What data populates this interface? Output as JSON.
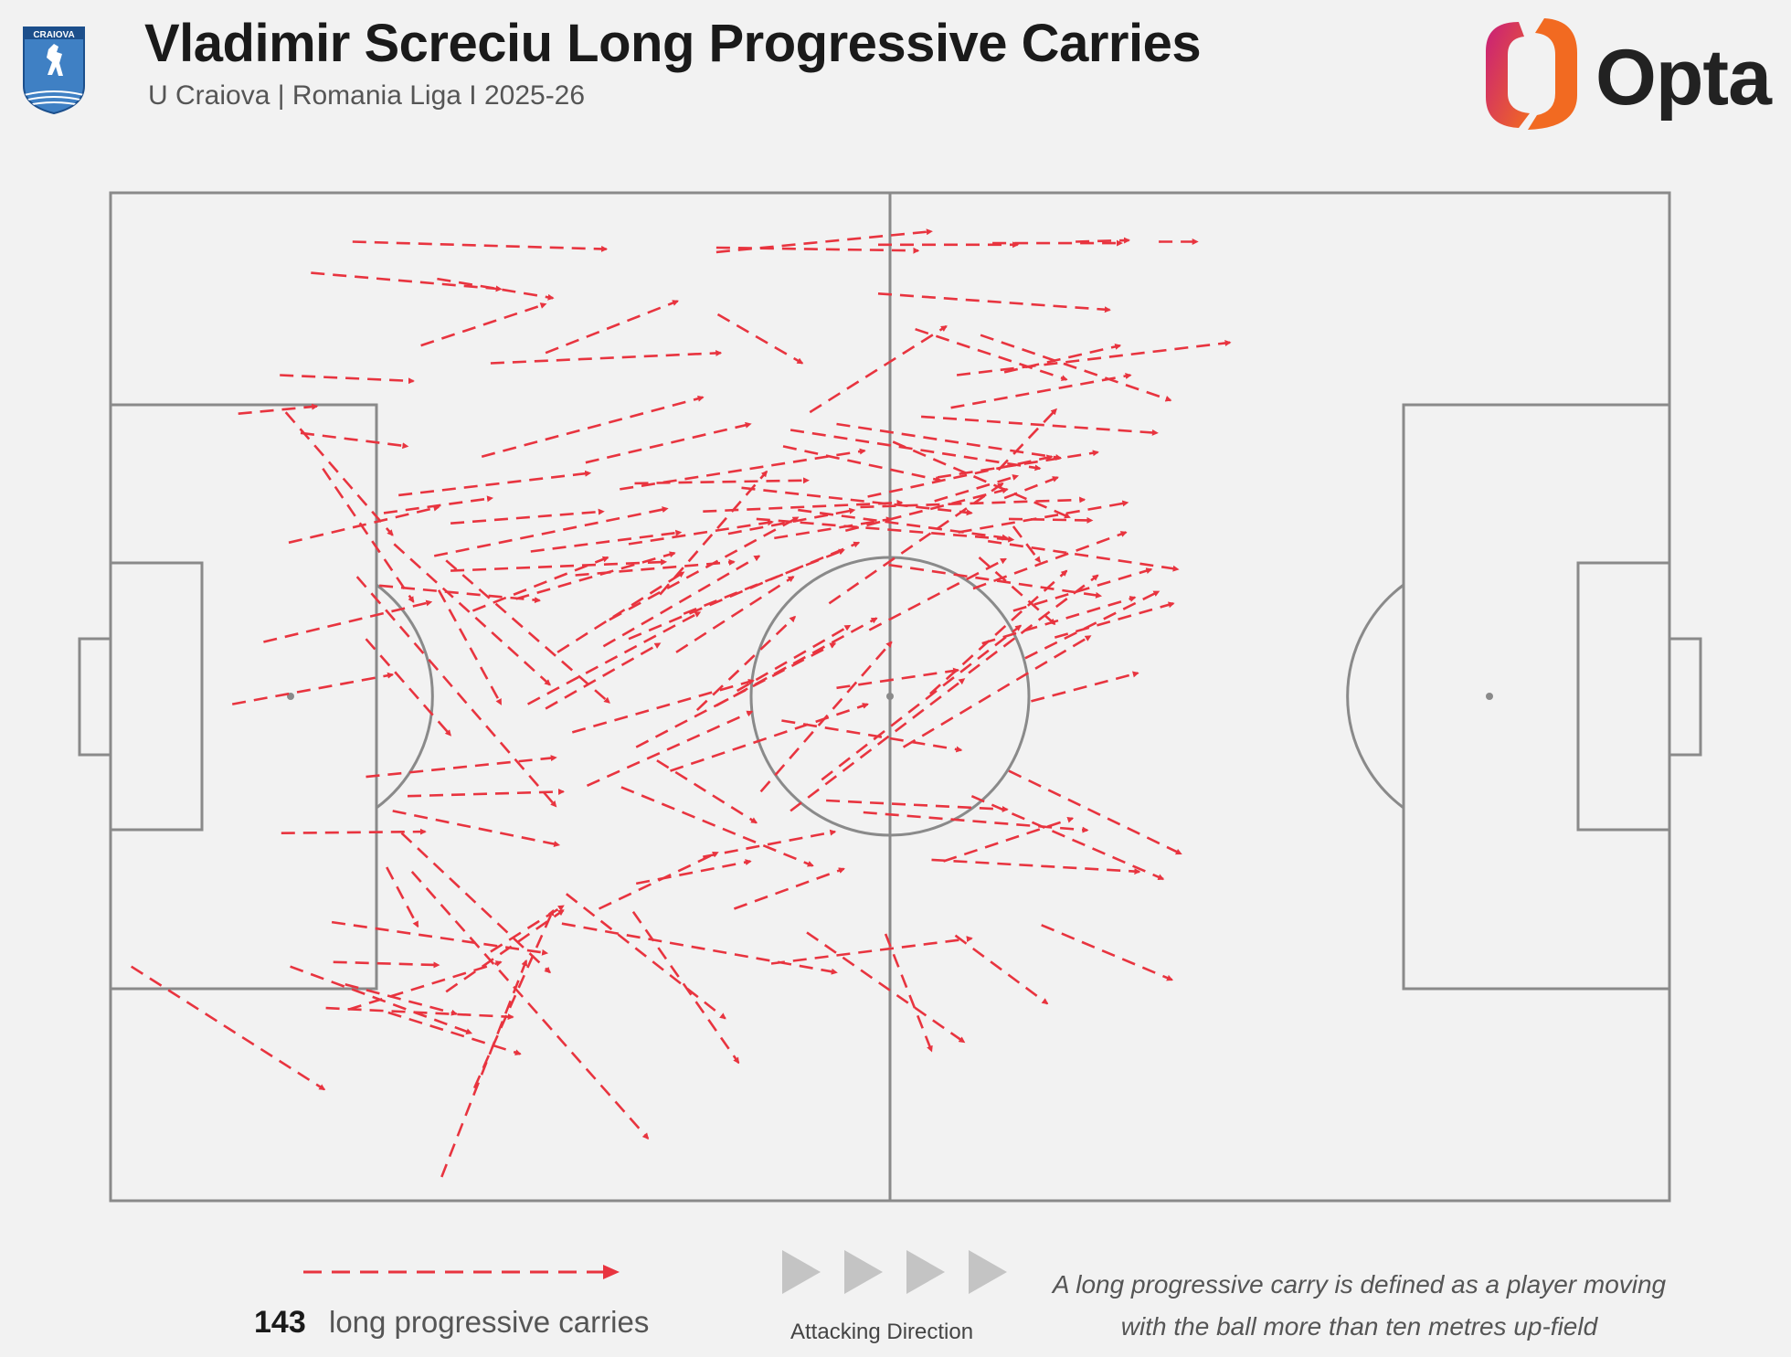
{
  "header": {
    "title": "Vladimir Screciu Long Progressive Carries",
    "subtitle": "U Craiova | Romania Liga I 2025-26",
    "crest_text": "CRAIOVA",
    "brand": "Opta"
  },
  "colors": {
    "background": "#f2f2f2",
    "pitch_lines": "#8a8a8a",
    "carry": "#e8343f",
    "brand_gradient": [
      "#c81e7a",
      "#f26a21"
    ]
  },
  "legend": {
    "count": "143",
    "label": "long progressive carries",
    "direction_label": "Attacking Direction",
    "definition": "A long progressive carry is defined as a player moving with the ball more than ten metres up-field"
  },
  "chart_data": {
    "type": "arrow-map",
    "pitch_length_m": 105,
    "pitch_width_m": 68,
    "total_carries": 143,
    "attacking_direction": "left-to-right",
    "carries": [
      [
        16.3,
        3.3,
        33.4,
        3.8
      ],
      [
        13.5,
        5.4,
        26.3,
        6.5
      ],
      [
        20.9,
        10.3,
        29.3,
        7.5
      ],
      [
        22.0,
        5.8,
        29.8,
        7.1
      ],
      [
        11.4,
        12.3,
        20.4,
        12.7
      ],
      [
        8.6,
        14.9,
        13.9,
        14.4
      ],
      [
        12.8,
        16.2,
        20.0,
        17.1
      ],
      [
        29.3,
        10.8,
        38.2,
        7.3
      ],
      [
        40.8,
        4.0,
        55.3,
        2.6
      ],
      [
        40.8,
        3.7,
        54.4,
        3.9
      ],
      [
        51.7,
        3.5,
        61.1,
        3.5
      ],
      [
        59.4,
        3.4,
        68.1,
        3.4
      ],
      [
        65.0,
        3.3,
        68.6,
        3.2
      ],
      [
        70.6,
        3.3,
        73.2,
        3.3
      ],
      [
        51.7,
        6.8,
        67.3,
        7.9
      ],
      [
        54.2,
        9.2,
        64.4,
        12.6
      ],
      [
        58.6,
        9.6,
        71.4,
        14.0
      ],
      [
        60.2,
        12.1,
        68.0,
        10.3
      ],
      [
        57.0,
        12.3,
        75.4,
        10.1
      ],
      [
        48.9,
        15.6,
        64.0,
        17.9
      ],
      [
        45.8,
        16.0,
        62.6,
        18.6
      ],
      [
        59.8,
        18.7,
        63.7,
        14.6
      ],
      [
        54.6,
        15.1,
        70.5,
        16.2
      ],
      [
        52.7,
        16.8,
        64.6,
        21.9
      ],
      [
        56.6,
        14.5,
        68.7,
        12.3
      ],
      [
        25.0,
        17.8,
        39.9,
        13.8
      ],
      [
        32.0,
        18.2,
        43.1,
        15.6
      ],
      [
        21.8,
        24.5,
        37.5,
        21.3
      ],
      [
        19.4,
        20.4,
        32.3,
        18.9
      ],
      [
        18.4,
        21.6,
        25.7,
        20.6
      ],
      [
        12.0,
        23.6,
        22.1,
        21.2
      ],
      [
        10.3,
        30.3,
        21.6,
        27.6
      ],
      [
        8.2,
        34.5,
        19.0,
        32.5
      ],
      [
        11.8,
        14.8,
        19.0,
        23.1
      ],
      [
        14.3,
        18.6,
        20.4,
        27.6
      ],
      [
        22.1,
        26.8,
        26.3,
        34.5
      ],
      [
        19.1,
        23.7,
        29.6,
        33.2
      ],
      [
        17.2,
        30.1,
        22.9,
        36.6
      ],
      [
        16.6,
        25.9,
        30.0,
        41.4
      ],
      [
        22.6,
        24.8,
        33.6,
        34.4
      ],
      [
        17.2,
        39.4,
        30.0,
        38.1
      ],
      [
        20.0,
        40.7,
        30.5,
        40.4
      ],
      [
        19.6,
        43.2,
        29.6,
        52.6
      ],
      [
        18.6,
        45.5,
        20.7,
        49.5
      ],
      [
        14.9,
        49.2,
        29.4,
        51.3
      ],
      [
        15.0,
        51.9,
        22.1,
        52.1
      ],
      [
        12.1,
        52.2,
        24.3,
        56.7
      ],
      [
        1.4,
        52.2,
        14.4,
        60.5
      ],
      [
        14.5,
        55.0,
        27.1,
        55.6
      ],
      [
        16.0,
        55.1,
        26.3,
        51.9
      ],
      [
        18.7,
        55.3,
        27.6,
        58.1
      ],
      [
        15.8,
        53.4,
        23.3,
        55.4
      ],
      [
        25.6,
        51.2,
        30.5,
        48.1
      ],
      [
        22.6,
        53.9,
        30.5,
        48.4
      ],
      [
        20.3,
        45.8,
        36.2,
        63.8
      ],
      [
        24.5,
        60.4,
        29.8,
        48.4
      ],
      [
        22.3,
        66.4,
        28.0,
        51.8
      ],
      [
        30.7,
        47.3,
        41.4,
        55.7
      ],
      [
        35.2,
        48.5,
        42.3,
        58.7
      ],
      [
        30.4,
        49.3,
        48.9,
        52.6
      ],
      [
        32.9,
        48.3,
        40.9,
        44.5
      ],
      [
        35.4,
        46.6,
        43.1,
        45.1
      ],
      [
        42.0,
        48.3,
        49.4,
        45.6
      ],
      [
        39.9,
        44.8,
        48.8,
        43.1
      ],
      [
        44.5,
        52.0,
        58.0,
        50.3
      ],
      [
        46.9,
        49.9,
        57.5,
        57.3
      ],
      [
        52.2,
        50.0,
        55.3,
        57.9
      ],
      [
        56.9,
        50.1,
        63.1,
        54.7
      ],
      [
        62.7,
        49.4,
        71.5,
        53.1
      ],
      [
        58.0,
        40.7,
        70.9,
        46.3
      ],
      [
        55.3,
        45.0,
        69.3,
        45.8
      ],
      [
        50.7,
        41.8,
        65.8,
        43.0
      ],
      [
        48.2,
        41.0,
        60.4,
        41.6
      ],
      [
        34.4,
        40.1,
        47.3,
        45.4
      ],
      [
        36.8,
        38.3,
        43.5,
        42.5
      ],
      [
        32.1,
        40.0,
        43.2,
        35.0
      ],
      [
        35.4,
        37.4,
        48.8,
        30.4
      ],
      [
        37.7,
        39.0,
        51.0,
        34.5
      ],
      [
        40.8,
        34.6,
        51.6,
        28.7
      ],
      [
        43.8,
        40.4,
        52.6,
        30.3
      ],
      [
        45.8,
        41.7,
        57.5,
        32.8
      ],
      [
        47.9,
        39.6,
        61.3,
        29.2
      ],
      [
        53.4,
        37.4,
        66.0,
        29.9
      ],
      [
        55.2,
        33.8,
        64.4,
        25.5
      ],
      [
        57.8,
        32.4,
        66.5,
        25.8
      ],
      [
        51.1,
        29.5,
        60.3,
        24.7
      ],
      [
        48.9,
        33.4,
        57.1,
        32.2
      ],
      [
        42.2,
        33.6,
        49.8,
        29.2
      ],
      [
        38.1,
        31.0,
        46.0,
        25.9
      ],
      [
        38.6,
        28.4,
        49.4,
        24.1
      ],
      [
        39.5,
        34.9,
        46.1,
        28.6
      ],
      [
        29.3,
        34.8,
        37.0,
        30.4
      ],
      [
        31.1,
        36.4,
        43.3,
        32.9
      ],
      [
        28.1,
        34.5,
        39.7,
        28.3
      ],
      [
        34.9,
        30.1,
        50.4,
        23.6
      ],
      [
        33.2,
        30.6,
        43.7,
        24.5
      ],
      [
        33.6,
        28.8,
        46.3,
        21.9
      ],
      [
        30.1,
        31.0,
        38.6,
        25.6
      ],
      [
        27.3,
        27.4,
        38.0,
        24.3
      ],
      [
        24.4,
        28.2,
        33.5,
        24.6
      ],
      [
        22.9,
        25.5,
        37.4,
        24.9
      ],
      [
        22.9,
        22.3,
        33.2,
        21.5
      ],
      [
        28.3,
        24.2,
        38.4,
        22.9
      ],
      [
        31.3,
        25.8,
        42.0,
        24.9
      ],
      [
        34.9,
        23.7,
        44.6,
        22.2
      ],
      [
        37.0,
        27.1,
        44.2,
        18.8
      ],
      [
        34.3,
        20.0,
        50.8,
        17.4
      ],
      [
        39.9,
        21.5,
        53.3,
        20.9
      ],
      [
        35.3,
        19.6,
        47.0,
        19.4
      ],
      [
        41.6,
        23.0,
        50.1,
        21.4
      ],
      [
        44.7,
        23.3,
        52.6,
        22.0
      ],
      [
        49.5,
        22.8,
        60.4,
        20.0
      ],
      [
        42.5,
        19.9,
        58.0,
        21.6
      ],
      [
        46.3,
        21.4,
        60.4,
        23.3
      ],
      [
        51.0,
        20.5,
        63.4,
        17.8
      ],
      [
        57.1,
        22.9,
        68.5,
        20.9
      ],
      [
        55.5,
        20.8,
        61.1,
        19.1
      ],
      [
        60.2,
        20.6,
        63.8,
        19.2
      ],
      [
        59.1,
        23.5,
        71.9,
        25.4
      ],
      [
        58.1,
        26.7,
        68.4,
        22.9
      ],
      [
        60.8,
        28.2,
        70.1,
        25.4
      ],
      [
        58.7,
        30.4,
        69.0,
        27.3
      ],
      [
        61.6,
        31.4,
        70.6,
        26.9
      ],
      [
        62.0,
        34.3,
        69.2,
        32.4
      ],
      [
        63.6,
        30.0,
        71.6,
        27.7
      ],
      [
        60.8,
        22.5,
        62.6,
        24.9
      ],
      [
        60.5,
        22.0,
        66.1,
        22.1
      ],
      [
        52.4,
        25.1,
        66.7,
        27.2
      ],
      [
        58.5,
        24.6,
        63.6,
        29.1
      ],
      [
        50.5,
        21.2,
        65.6,
        20.7
      ],
      [
        43.5,
        22.0,
        60.8,
        23.4
      ],
      [
        48.4,
        27.7,
        60.1,
        19.6
      ],
      [
        45.3,
        17.1,
        55.9,
        19.4
      ],
      [
        55.7,
        19.2,
        66.5,
        17.5
      ],
      [
        45.2,
        35.6,
        57.3,
        37.6
      ],
      [
        19.0,
        41.7,
        30.2,
        44.0
      ],
      [
        11.5,
        43.2,
        21.2,
        43.1
      ],
      [
        18.1,
        26.5,
        28.9,
        27.5
      ],
      [
        56.1,
        45.1,
        64.8,
        42.2
      ],
      [
        47.1,
        14.8,
        56.3,
        9.0
      ],
      [
        25.6,
        11.5,
        41.1,
        10.8
      ],
      [
        40.9,
        8.2,
        46.6,
        11.5
      ],
      [
        60.5,
        39.0,
        72.1,
        44.6
      ]
    ]
  }
}
